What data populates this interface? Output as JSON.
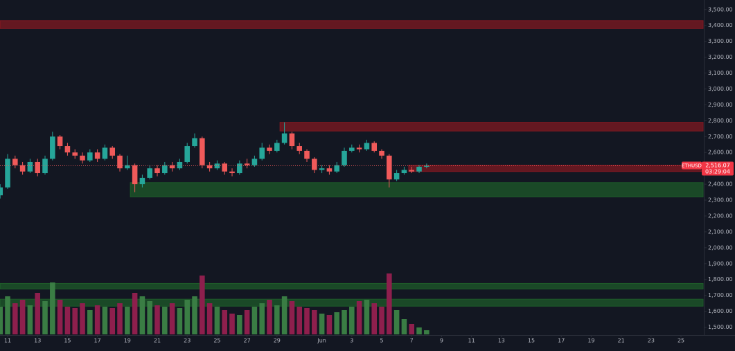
{
  "chart_data": {
    "type": "candlestick",
    "symbol": "ETHUSD",
    "last_price_label": "2,516.07",
    "countdown": "03:29:04",
    "up_color": "#26a69a",
    "down_color": "#f05a5a",
    "volume_up_color": "#3a7d44",
    "volume_down_color": "#8e1f4d",
    "x": [
      10.5,
      11,
      11.5,
      12,
      12.5,
      13,
      13.5,
      14,
      14.5,
      15,
      15.5,
      16,
      16.5,
      17,
      17.5,
      18,
      18.5,
      19,
      19.5,
      20,
      20.5,
      21,
      21.5,
      22,
      22.5,
      23,
      23.5,
      24,
      24.5,
      25,
      25.5,
      26,
      26.5,
      27,
      27.5,
      28,
      28.5,
      29,
      29.5,
      30,
      30.5,
      31,
      31.5,
      32,
      32.5,
      33,
      33.5,
      34,
      34.5,
      35,
      35.5,
      36,
      36.5,
      37,
      37.5,
      38,
      38.5,
      39
    ],
    "open": [
      2330,
      2380,
      2560,
      2520,
      2480,
      2540,
      2470,
      2560,
      2700,
      2640,
      2600,
      2580,
      2550,
      2600,
      2560,
      2630,
      2580,
      2500,
      2520,
      2400,
      2440,
      2500,
      2470,
      2520,
      2500,
      2540,
      2640,
      2690,
      2520,
      2500,
      2530,
      2480,
      2470,
      2530,
      2520,
      2560,
      2630,
      2610,
      2660,
      2720,
      2640,
      2610,
      2560,
      2490,
      2500,
      2480,
      2520,
      2610,
      2630,
      2620,
      2660,
      2610,
      2580,
      2430,
      2470,
      2490,
      2480,
      2510
    ],
    "high": [
      2400,
      2590,
      2580,
      2540,
      2560,
      2560,
      2580,
      2730,
      2710,
      2660,
      2620,
      2600,
      2620,
      2620,
      2650,
      2640,
      2590,
      2580,
      2530,
      2460,
      2520,
      2520,
      2540,
      2540,
      2560,
      2660,
      2720,
      2700,
      2540,
      2550,
      2540,
      2500,
      2550,
      2560,
      2580,
      2660,
      2650,
      2680,
      2790,
      2730,
      2660,
      2620,
      2570,
      2520,
      2520,
      2540,
      2630,
      2650,
      2650,
      2680,
      2670,
      2620,
      2590,
      2490,
      2510,
      2510,
      2520,
      2530
    ],
    "low": [
      2310,
      2370,
      2500,
      2460,
      2470,
      2450,
      2460,
      2550,
      2620,
      2580,
      2560,
      2530,
      2540,
      2540,
      2550,
      2560,
      2480,
      2490,
      2350,
      2380,
      2430,
      2450,
      2460,
      2480,
      2490,
      2530,
      2630,
      2500,
      2480,
      2490,
      2460,
      2450,
      2460,
      2500,
      2510,
      2550,
      2590,
      2600,
      2650,
      2620,
      2590,
      2540,
      2470,
      2470,
      2460,
      2470,
      2510,
      2600,
      2600,
      2610,
      2600,
      2560,
      2380,
      2420,
      2460,
      2470,
      2470,
      2500
    ],
    "close": [
      2380,
      2560,
      2520,
      2480,
      2540,
      2470,
      2560,
      2700,
      2640,
      2600,
      2580,
      2550,
      2600,
      2560,
      2630,
      2580,
      2500,
      2520,
      2400,
      2440,
      2500,
      2470,
      2520,
      2500,
      2540,
      2640,
      2690,
      2520,
      2500,
      2530,
      2480,
      2470,
      2530,
      2520,
      2560,
      2630,
      2610,
      2660,
      2720,
      2640,
      2610,
      2560,
      2490,
      2500,
      2480,
      2520,
      2610,
      2630,
      2620,
      2660,
      2610,
      2580,
      2430,
      2470,
      2490,
      2480,
      2510,
      2516.07
    ],
    "volume": [
      40,
      55,
      45,
      50,
      42,
      60,
      48,
      75,
      50,
      40,
      38,
      45,
      35,
      42,
      40,
      38,
      45,
      40,
      60,
      55,
      48,
      42,
      40,
      45,
      38,
      50,
      55,
      85,
      45,
      40,
      35,
      30,
      28,
      35,
      40,
      45,
      50,
      42,
      55,
      48,
      40,
      38,
      35,
      30,
      28,
      32,
      35,
      40,
      48,
      50,
      45,
      40,
      88,
      35,
      22,
      15,
      10,
      6
    ],
    "volume_ylim": [
      0,
      100
    ],
    "zones": [
      {
        "from": 10.5,
        "low": 3380,
        "high": 3430,
        "color": "#801922"
      },
      {
        "from": 29.2,
        "low": 2735,
        "high": 2790,
        "color": "#801922"
      },
      {
        "from": 37.8,
        "low": 2480,
        "high": 2520,
        "color": "#801922"
      },
      {
        "from": 19.2,
        "low": 2320,
        "high": 2410,
        "color": "#1e5b2a"
      },
      {
        "from": 10.5,
        "low": 1740,
        "high": 1775,
        "color": "#1e5b2a"
      },
      {
        "from": 10.5,
        "low": 1632,
        "high": 1676,
        "color": "#1e5b2a"
      }
    ],
    "xlim": [
      10.49,
      57.48
    ],
    "ylim": [
      1450,
      3560
    ],
    "xticks": [
      {
        "value": 11,
        "label": "11"
      },
      {
        "value": 13,
        "label": "13"
      },
      {
        "value": 15,
        "label": "15"
      },
      {
        "value": 17,
        "label": "17"
      },
      {
        "value": 19,
        "label": "19"
      },
      {
        "value": 21,
        "label": "21"
      },
      {
        "value": 23,
        "label": "23"
      },
      {
        "value": 25,
        "label": "25"
      },
      {
        "value": 27,
        "label": "27"
      },
      {
        "value": 29,
        "label": "29"
      },
      {
        "value": 32,
        "label": "Jun"
      },
      {
        "value": 34,
        "label": "3"
      },
      {
        "value": 36,
        "label": "5"
      },
      {
        "value": 38,
        "label": "7"
      },
      {
        "value": 40,
        "label": "9"
      },
      {
        "value": 42,
        "label": "11"
      },
      {
        "value": 44,
        "label": "13"
      },
      {
        "value": 46,
        "label": "15"
      },
      {
        "value": 48,
        "label": "17"
      },
      {
        "value": 50,
        "label": "19"
      },
      {
        "value": 52,
        "label": "21"
      },
      {
        "value": 54,
        "label": "23"
      },
      {
        "value": 56,
        "label": "25"
      }
    ],
    "yticks": [
      {
        "value": 1500,
        "label": "1,500.00"
      },
      {
        "value": 1600,
        "label": "1,600.00"
      },
      {
        "value": 1700,
        "label": "1,700.00"
      },
      {
        "value": 1800,
        "label": "1,800.00"
      },
      {
        "value": 1900,
        "label": "1,900.00"
      },
      {
        "value": 2000,
        "label": "2,000.00"
      },
      {
        "value": 2100,
        "label": "2,100.00"
      },
      {
        "value": 2200,
        "label": "2,200.00"
      },
      {
        "value": 2300,
        "label": "2,300.00"
      },
      {
        "value": 2400,
        "label": "2,400.00"
      },
      {
        "value": 2500,
        "label": "2,500.00"
      },
      {
        "value": 2600,
        "label": "2,600.00"
      },
      {
        "value": 2700,
        "label": "2,700.00"
      },
      {
        "value": 2800,
        "label": "2,800.00"
      },
      {
        "value": 2900,
        "label": "2,900.00"
      },
      {
        "value": 3000,
        "label": "3,000.00"
      },
      {
        "value": 3100,
        "label": "3,100.00"
      },
      {
        "value": 3200,
        "label": "3,200.00"
      },
      {
        "value": 3300,
        "label": "3,300.00"
      },
      {
        "value": 3400,
        "label": "3,400.00"
      },
      {
        "value": 3500,
        "label": "3,500.00"
      }
    ]
  }
}
